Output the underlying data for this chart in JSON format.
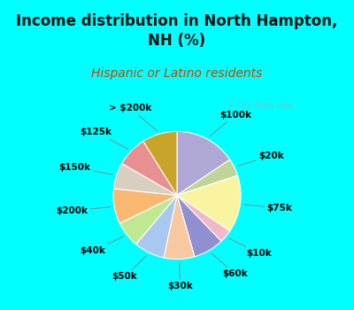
{
  "title": "Income distribution in North Hampton,\nNH (%)",
  "subtitle": "Hispanic or Latino residents",
  "background_color": "#00FFFF",
  "chart_bg": "#dff0e8",
  "watermark": "City-Data.com",
  "slices": [
    {
      "label": "$100k",
      "value": 14,
      "color": "#b0a8d4"
    },
    {
      "label": "$20k",
      "value": 4,
      "color": "#c0d49a"
    },
    {
      "label": "$75k",
      "value": 13,
      "color": "#f8f4a0"
    },
    {
      "label": "$10k",
      "value": 3,
      "color": "#f0b8c8"
    },
    {
      "label": "$60k",
      "value": 7,
      "color": "#9090d0"
    },
    {
      "label": "$30k",
      "value": 7,
      "color": "#f8c8a0"
    },
    {
      "label": "$50k",
      "value": 7,
      "color": "#a8c8f0"
    },
    {
      "label": "$40k",
      "value": 6,
      "color": "#c0e890"
    },
    {
      "label": "$200k",
      "value": 8,
      "color": "#f8b870"
    },
    {
      "label": "$150k",
      "value": 6,
      "color": "#d8cfc0"
    },
    {
      "label": "$125k",
      "value": 7,
      "color": "#e89090"
    },
    {
      "label": "> $200k",
      "value": 8,
      "color": "#c8a428"
    }
  ],
  "title_fontsize": 12,
  "subtitle_fontsize": 10,
  "label_fontsize": 7.5
}
